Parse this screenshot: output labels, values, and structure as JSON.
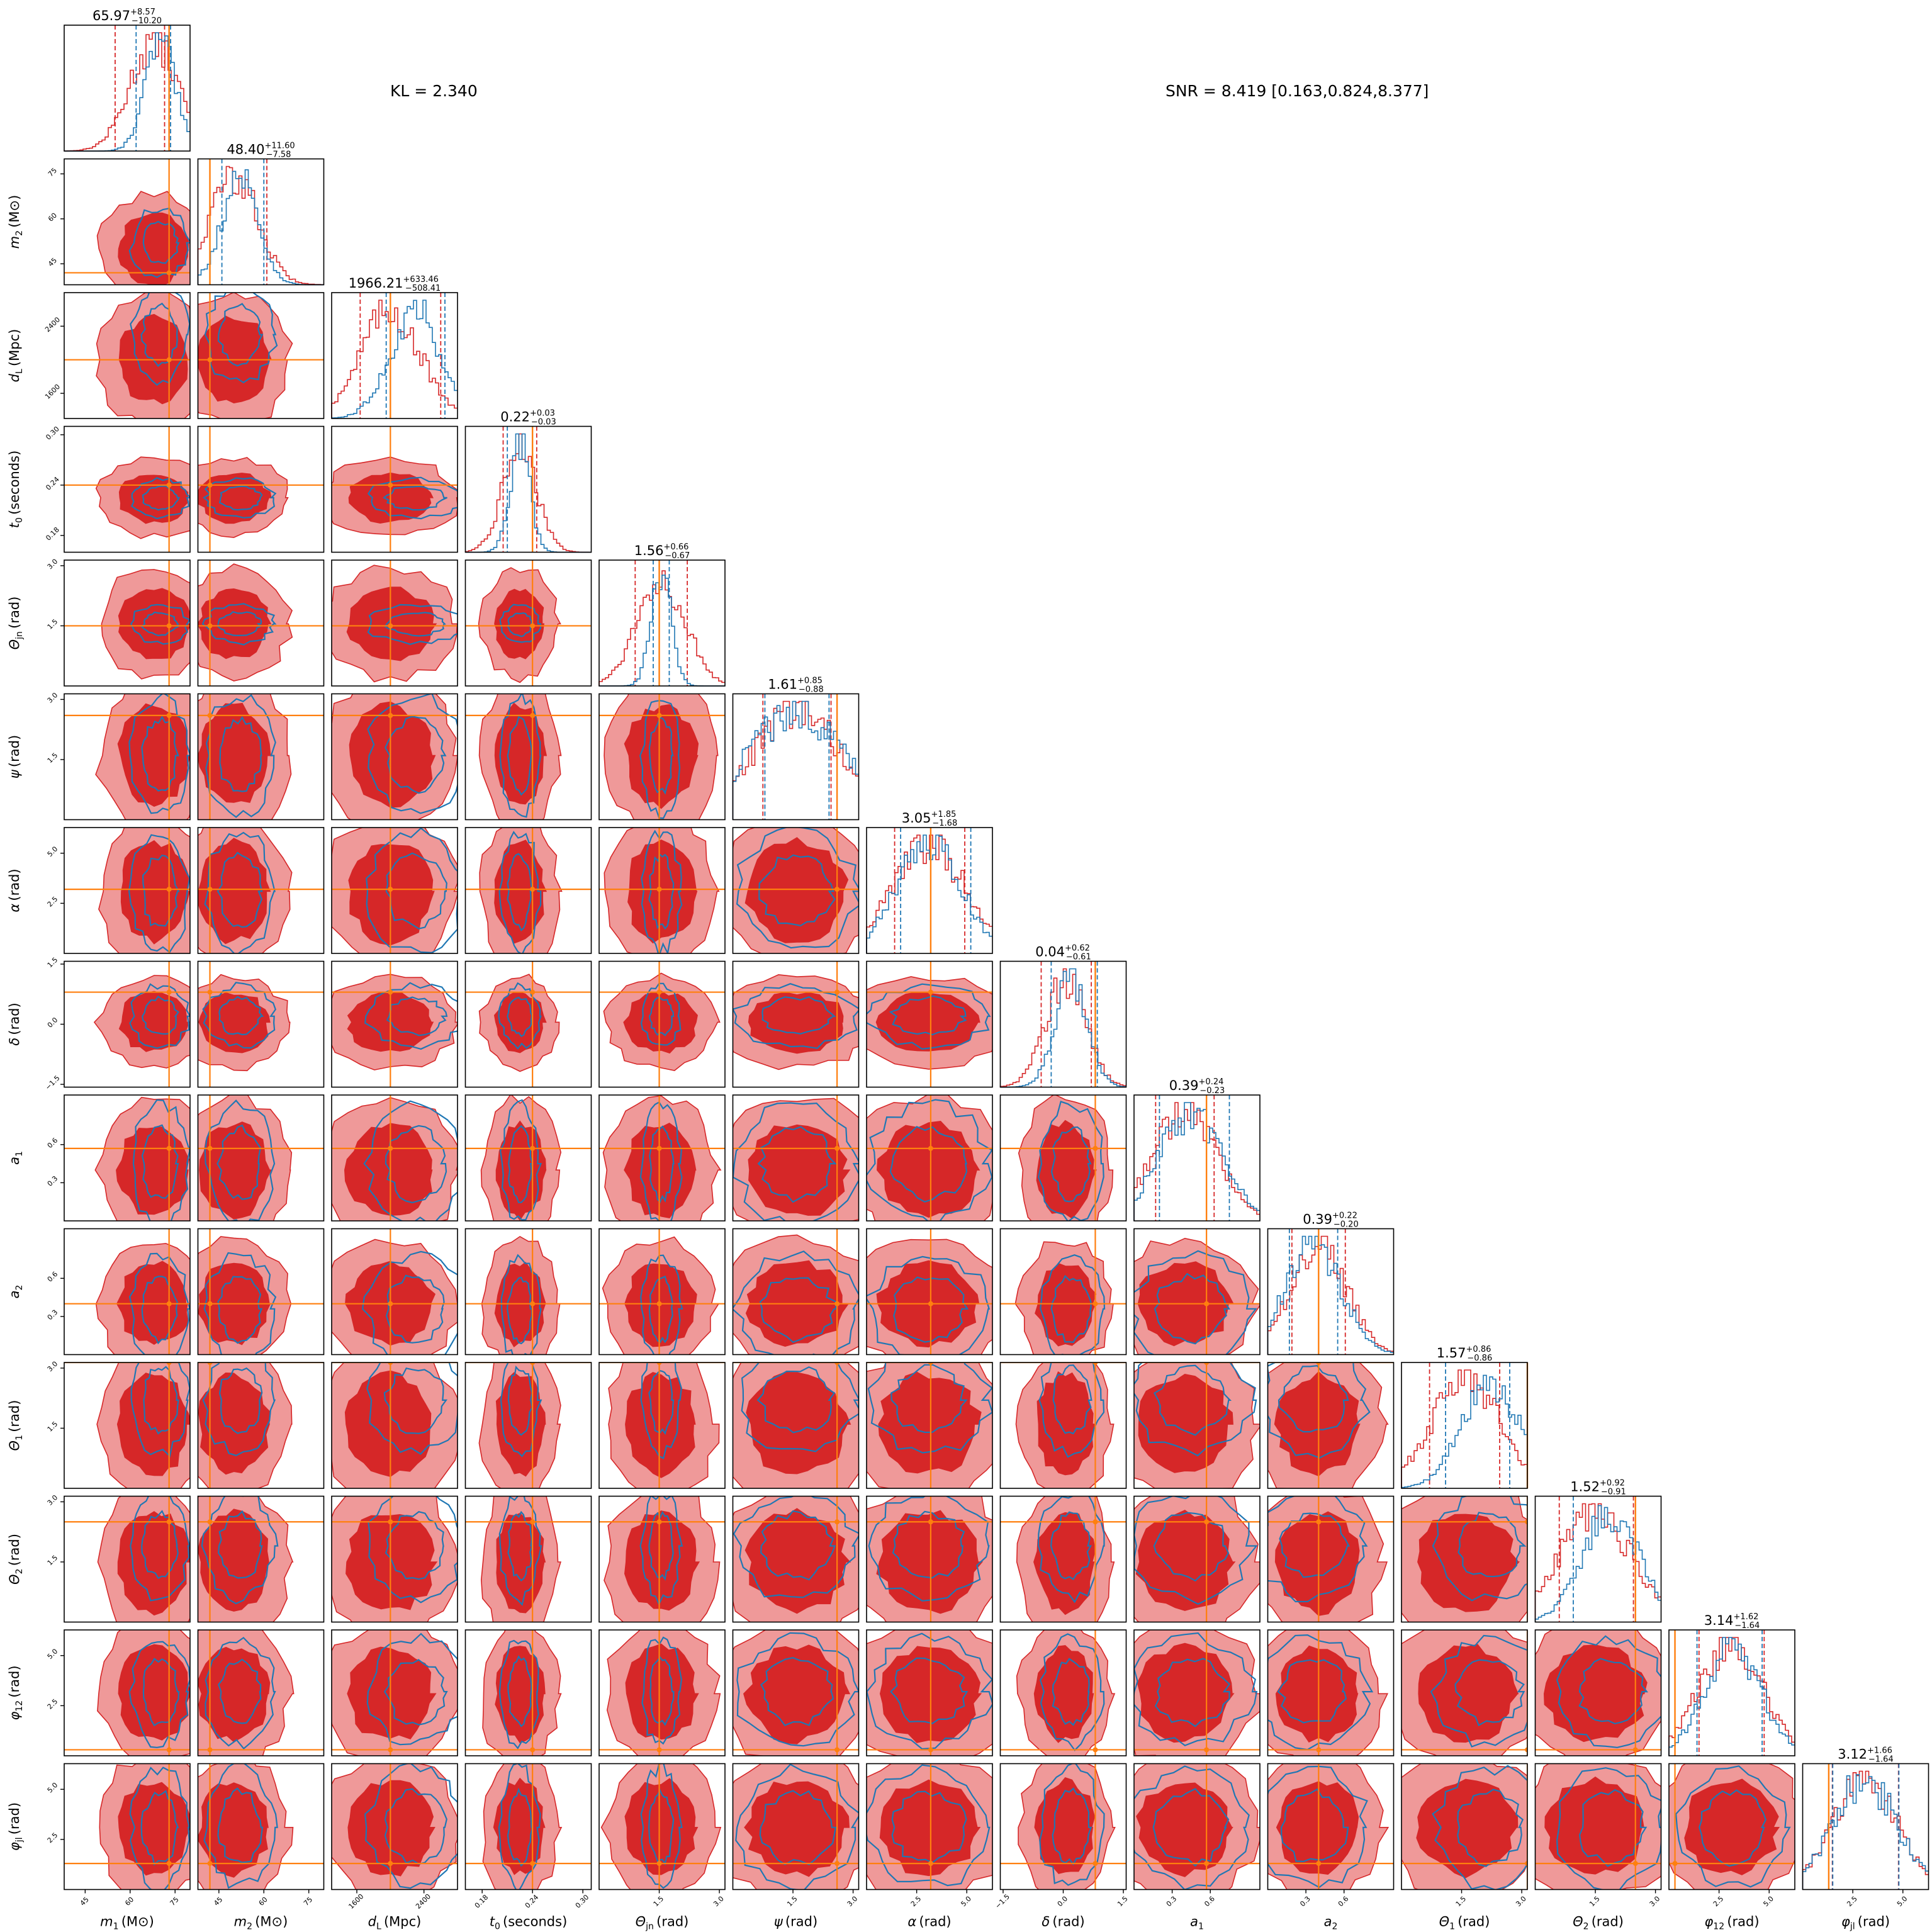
{
  "annotations": {
    "kl": "KL = 2.340",
    "snr": "SNR = 8.419 [0.163,0.824,8.377]"
  },
  "chart_data": {
    "type": "corner",
    "colors": {
      "red": "#d62728",
      "red_light": "#ef9999",
      "blue": "#1f77b4",
      "truth": "#ff7f0e"
    },
    "parameters": [
      {
        "id": "m1",
        "sym": "m",
        "sub": "1",
        "unit": "(M⊙)",
        "label": "m1 (M⊙)",
        "range": [
          38,
          80
        ],
        "ticks": [
          45,
          60,
          75
        ],
        "tick_labels": [
          "45",
          "60",
          "75"
        ],
        "median": "65.97",
        "plus": "+8.57",
        "minus": "−10.20",
        "truth": 73,
        "q_red": [
          55,
          71.5
        ],
        "q_blue": [
          62,
          73.5
        ],
        "red_mu": 68,
        "red_sd": 8,
        "blue_mu": 70,
        "blue_sd": 5
      },
      {
        "id": "m2",
        "sym": "m",
        "sub": "2",
        "unit": "(M⊙)",
        "label": "m2 (M⊙)",
        "range": [
          38,
          80
        ],
        "ticks": [
          45,
          60,
          75
        ],
        "tick_labels": [
          "45",
          "60",
          "75"
        ],
        "median": "48.40",
        "plus": "+11.60",
        "minus": "−7.58",
        "truth": 42,
        "q_red": [
          42,
          61
        ],
        "q_blue": [
          46,
          60
        ],
        "red_mu": 50,
        "red_sd": 8,
        "blue_mu": 52,
        "blue_sd": 6
      },
      {
        "id": "dl",
        "sym": "d",
        "sub": "L",
        "unit": "(Mpc)",
        "label": "dL (Mpc)",
        "range": [
          1300,
          2800
        ],
        "ticks": [
          1600,
          2400
        ],
        "tick_labels": [
          "1600",
          "2400"
        ],
        "median": "1966.21",
        "plus": "+633.46",
        "minus": "−508.41",
        "truth": 2000,
        "q_red": [
          1640,
          2600
        ],
        "q_blue": [
          1950,
          2650
        ],
        "red_mu": 2000,
        "red_sd": 350,
        "blue_mu": 2300,
        "blue_sd": 300
      },
      {
        "id": "t0",
        "sym": "t",
        "sub": "0",
        "unit": "(seconds)",
        "label": "t0 (seconds)",
        "range": [
          0.16,
          0.31
        ],
        "ticks": [
          0.18,
          0.24,
          0.3
        ],
        "tick_labels": [
          "0.18",
          "0.24",
          "0.30"
        ],
        "median": "0.22",
        "plus": "+0.03",
        "minus": "−0.03",
        "truth": 0.24,
        "q_red": [
          0.205,
          0.245
        ],
        "q_blue": [
          0.21,
          0.24
        ],
        "red_mu": 0.225,
        "red_sd": 0.02,
        "blue_mu": 0.225,
        "blue_sd": 0.012
      },
      {
        "id": "thetajn",
        "sym": "Θ",
        "sub": "jn",
        "unit": "(rad)",
        "label": "Θjn (rad)",
        "range": [
          0,
          3.14
        ],
        "ticks": [
          1.5,
          3.0
        ],
        "tick_labels": [
          "1.5",
          "3.0"
        ],
        "median": "1.56",
        "plus": "+0.66",
        "minus": "−0.67",
        "truth": 1.5,
        "q_red": [
          0.9,
          2.2
        ],
        "q_blue": [
          1.35,
          1.75
        ],
        "red_mu": 1.55,
        "red_sd": 0.6,
        "blue_mu": 1.55,
        "blue_sd": 0.25
      },
      {
        "id": "psi",
        "sym": "ψ",
        "sub": "",
        "unit": "(rad)",
        "label": "ψ (rad)",
        "range": [
          0,
          3.14
        ],
        "ticks": [
          1.5,
          3.0
        ],
        "tick_labels": [
          "1.5",
          "3.0"
        ],
        "median": "1.61",
        "plus": "+0.85",
        "minus": "−0.88",
        "truth": 2.6,
        "q_red": [
          0.75,
          2.45
        ],
        "q_blue": [
          0.8,
          2.4
        ],
        "red_mu": 1.6,
        "red_sd": 1.1,
        "blue_mu": 1.6,
        "blue_sd": 1.2
      },
      {
        "id": "alpha",
        "sym": "α",
        "sub": "",
        "unit": "(rad)",
        "label": "α (rad)",
        "range": [
          0,
          6.28
        ],
        "ticks": [
          2.5,
          5.0
        ],
        "tick_labels": [
          "2.5",
          "5.0"
        ],
        "median": "3.05",
        "plus": "+1.85",
        "minus": "−1.68",
        "truth": 3.2,
        "q_red": [
          1.4,
          4.9
        ],
        "q_blue": [
          1.7,
          5.2
        ],
        "red_mu": 3.1,
        "red_sd": 1.8,
        "blue_mu": 3.1,
        "blue_sd": 1.6
      },
      {
        "id": "delta",
        "sym": "δ",
        "sub": "",
        "unit": "(rad)",
        "label": "δ (rad)",
        "range": [
          -1.57,
          1.57
        ],
        "ticks": [
          -1.5,
          0.0,
          1.5
        ],
        "tick_labels": [
          "−1.5",
          "0.0",
          "1.5"
        ],
        "median": "0.04",
        "plus": "+0.62",
        "minus": "−0.61",
        "truth": 0.8,
        "q_red": [
          -0.55,
          0.7
        ],
        "q_blue": [
          -0.3,
          0.85
        ],
        "red_mu": 0.05,
        "red_sd": 0.5,
        "blue_mu": 0.2,
        "blue_sd": 0.4
      },
      {
        "id": "a1",
        "sym": "a",
        "sub": "1",
        "unit": "",
        "label": "a1",
        "range": [
          0,
          0.99
        ],
        "ticks": [
          0.3,
          0.6
        ],
        "tick_labels": [
          "0.3",
          "0.6"
        ],
        "median": "0.39",
        "plus": "+0.24",
        "minus": "−0.23",
        "truth": 0.57,
        "q_red": [
          0.17,
          0.63
        ],
        "q_blue": [
          0.2,
          0.75
        ],
        "red_mu": 0.4,
        "red_sd": 0.25,
        "blue_mu": 0.45,
        "blue_sd": 0.25
      },
      {
        "id": "a2",
        "sym": "a",
        "sub": "2",
        "unit": "",
        "label": "a2",
        "range": [
          0,
          0.99
        ],
        "ticks": [
          0.3,
          0.6
        ],
        "tick_labels": [
          "0.3",
          "0.6"
        ],
        "median": "0.39",
        "plus": "+0.22",
        "minus": "−0.20",
        "truth": 0.4,
        "q_red": [
          0.19,
          0.61
        ],
        "q_blue": [
          0.17,
          0.55
        ],
        "red_mu": 0.4,
        "red_sd": 0.22,
        "blue_mu": 0.36,
        "blue_sd": 0.22
      },
      {
        "id": "theta1",
        "sym": "Θ",
        "sub": "1",
        "unit": "(rad)",
        "label": "Θ1 (rad)",
        "range": [
          0,
          3.14
        ],
        "ticks": [
          1.5,
          3.0
        ],
        "tick_labels": [
          "1.5",
          "3.0"
        ],
        "median": "1.57",
        "plus": "+0.86",
        "minus": "−0.86",
        "truth": 3.14,
        "q_red": [
          0.7,
          2.45
        ],
        "q_blue": [
          1.1,
          2.7
        ],
        "red_mu": 1.6,
        "red_sd": 0.85,
        "blue_mu": 2.2,
        "blue_sd": 0.7
      },
      {
        "id": "theta2",
        "sym": "Θ",
        "sub": "2",
        "unit": "(rad)",
        "label": "Θ2 (rad)",
        "range": [
          0,
          3.14
        ],
        "ticks": [
          1.5,
          3.0
        ],
        "tick_labels": [
          "1.5",
          "3.0"
        ],
        "median": "1.52",
        "plus": "+0.92",
        "minus": "−0.91",
        "truth": 2.5,
        "q_red": [
          0.6,
          2.45
        ],
        "q_blue": [
          0.95,
          2.5
        ],
        "red_mu": 1.5,
        "red_sd": 0.9,
        "blue_mu": 1.9,
        "blue_sd": 0.7
      },
      {
        "id": "phi12",
        "sym": "φ",
        "sub": "12",
        "unit": "(rad)",
        "label": "φ12 (rad)",
        "range": [
          0,
          6.28
        ],
        "ticks": [
          2.5,
          5.0
        ],
        "tick_labels": [
          "2.5",
          "5.0"
        ],
        "median": "3.14",
        "plus": "+1.62",
        "minus": "−1.64",
        "truth": 0.3,
        "q_red": [
          1.5,
          4.75
        ],
        "q_blue": [
          1.4,
          4.65
        ],
        "red_mu": 3.1,
        "red_sd": 1.6,
        "blue_mu": 3.2,
        "blue_sd": 1.4
      },
      {
        "id": "phijl",
        "sym": "φ",
        "sub": "jl",
        "unit": "(rad)",
        "label": "φjl (rad)",
        "range": [
          0,
          6.28
        ],
        "ticks": [
          2.5,
          5.0
        ],
        "tick_labels": [
          "2.5",
          "5.0"
        ],
        "median": "3.12",
        "plus": "+1.66",
        "minus": "−1.64",
        "truth": 1.3,
        "q_red": [
          1.48,
          4.78
        ],
        "q_blue": [
          1.5,
          4.8
        ],
        "red_mu": 3.1,
        "red_sd": 1.6,
        "blue_mu": 3.1,
        "blue_sd": 1.6
      }
    ]
  }
}
